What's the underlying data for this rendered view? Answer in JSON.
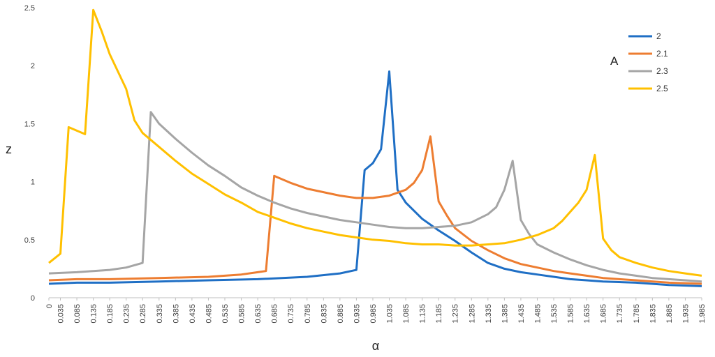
{
  "chart_data": {
    "type": "line",
    "xlabel": "α",
    "ylabel": "z",
    "ylim": [
      0,
      2.5
    ],
    "yticks": [
      "0",
      "0.5",
      "1",
      "1.5",
      "2",
      "2.5"
    ],
    "grid": false,
    "legend": {
      "title": "A",
      "position": "top-right"
    },
    "x": [
      0,
      0.035,
      0.085,
      0.135,
      0.185,
      0.235,
      0.285,
      0.335,
      0.385,
      0.435,
      0.485,
      0.535,
      0.585,
      0.635,
      0.685,
      0.735,
      0.785,
      0.835,
      0.885,
      0.935,
      0.985,
      1.035,
      1.085,
      1.135,
      1.185,
      1.235,
      1.285,
      1.335,
      1.385,
      1.435,
      1.485,
      1.535,
      1.585,
      1.635,
      1.685,
      1.735,
      1.785,
      1.835,
      1.885,
      1.935,
      1.985
    ],
    "x_tick_labels": [
      "0",
      "0.035",
      "0.085",
      "0.135",
      "0.185",
      "0.235",
      "0.285",
      "0.335",
      "0.385",
      "0.435",
      "0.485",
      "0.535",
      "0.585",
      "0.635",
      "0.685",
      "0.735",
      "0.785",
      "0.835",
      "0.885",
      "0.935",
      "0.985",
      "1.035",
      "1.085",
      "1.135",
      "1.185",
      "1.235",
      "1.285",
      "1.335",
      "1.385",
      "1.435",
      "1.485",
      "1.535",
      "1.585",
      "1.635",
      "1.685",
      "1.735",
      "1.785",
      "1.835",
      "1.885",
      "1.935",
      "1.985"
    ],
    "series": [
      {
        "name": "2",
        "color": "#1f6fc5",
        "points": [
          [
            0,
            0.12
          ],
          [
            0.085,
            0.13
          ],
          [
            0.185,
            0.13
          ],
          [
            0.335,
            0.14
          ],
          [
            0.485,
            0.15
          ],
          [
            0.635,
            0.16
          ],
          [
            0.785,
            0.18
          ],
          [
            0.885,
            0.21
          ],
          [
            0.935,
            0.24
          ],
          [
            0.96,
            1.1
          ],
          [
            0.985,
            1.16
          ],
          [
            1.01,
            1.28
          ],
          [
            1.035,
            1.95
          ],
          [
            1.06,
            0.93
          ],
          [
            1.085,
            0.82
          ],
          [
            1.135,
            0.68
          ],
          [
            1.185,
            0.58
          ],
          [
            1.235,
            0.49
          ],
          [
            1.285,
            0.39
          ],
          [
            1.335,
            0.3
          ],
          [
            1.385,
            0.25
          ],
          [
            1.435,
            0.22
          ],
          [
            1.485,
            0.2
          ],
          [
            1.535,
            0.18
          ],
          [
            1.585,
            0.16
          ],
          [
            1.635,
            0.15
          ],
          [
            1.685,
            0.14
          ],
          [
            1.785,
            0.13
          ],
          [
            1.885,
            0.11
          ],
          [
            1.985,
            0.1
          ]
        ]
      },
      {
        "name": "2.1",
        "color": "#ed7d31",
        "points": [
          [
            0,
            0.15
          ],
          [
            0.085,
            0.16
          ],
          [
            0.185,
            0.16
          ],
          [
            0.335,
            0.17
          ],
          [
            0.485,
            0.18
          ],
          [
            0.585,
            0.2
          ],
          [
            0.635,
            0.22
          ],
          [
            0.66,
            0.23
          ],
          [
            0.685,
            1.05
          ],
          [
            0.735,
            0.99
          ],
          [
            0.785,
            0.94
          ],
          [
            0.835,
            0.91
          ],
          [
            0.885,
            0.88
          ],
          [
            0.935,
            0.86
          ],
          [
            0.985,
            0.86
          ],
          [
            1.035,
            0.88
          ],
          [
            1.085,
            0.93
          ],
          [
            1.11,
            0.99
          ],
          [
            1.135,
            1.1
          ],
          [
            1.16,
            1.39
          ],
          [
            1.185,
            0.83
          ],
          [
            1.21,
            0.71
          ],
          [
            1.235,
            0.6
          ],
          [
            1.285,
            0.49
          ],
          [
            1.335,
            0.41
          ],
          [
            1.385,
            0.34
          ],
          [
            1.435,
            0.29
          ],
          [
            1.485,
            0.26
          ],
          [
            1.535,
            0.23
          ],
          [
            1.585,
            0.21
          ],
          [
            1.635,
            0.19
          ],
          [
            1.685,
            0.17
          ],
          [
            1.735,
            0.16
          ],
          [
            1.785,
            0.15
          ],
          [
            1.885,
            0.13
          ],
          [
            1.985,
            0.12
          ]
        ]
      },
      {
        "name": "2.3",
        "color": "#a5a5a5",
        "points": [
          [
            0,
            0.21
          ],
          [
            0.085,
            0.22
          ],
          [
            0.135,
            0.23
          ],
          [
            0.185,
            0.24
          ],
          [
            0.235,
            0.26
          ],
          [
            0.285,
            0.3
          ],
          [
            0.31,
            1.6
          ],
          [
            0.335,
            1.5
          ],
          [
            0.385,
            1.37
          ],
          [
            0.435,
            1.25
          ],
          [
            0.485,
            1.14
          ],
          [
            0.535,
            1.05
          ],
          [
            0.585,
            0.95
          ],
          [
            0.635,
            0.88
          ],
          [
            0.685,
            0.82
          ],
          [
            0.735,
            0.77
          ],
          [
            0.785,
            0.73
          ],
          [
            0.835,
            0.7
          ],
          [
            0.885,
            0.67
          ],
          [
            0.935,
            0.65
          ],
          [
            0.985,
            0.63
          ],
          [
            1.035,
            0.61
          ],
          [
            1.085,
            0.6
          ],
          [
            1.135,
            0.6
          ],
          [
            1.185,
            0.61
          ],
          [
            1.235,
            0.62
          ],
          [
            1.285,
            0.65
          ],
          [
            1.335,
            0.72
          ],
          [
            1.36,
            0.78
          ],
          [
            1.385,
            0.93
          ],
          [
            1.41,
            1.18
          ],
          [
            1.435,
            0.67
          ],
          [
            1.46,
            0.55
          ],
          [
            1.485,
            0.46
          ],
          [
            1.535,
            0.39
          ],
          [
            1.585,
            0.33
          ],
          [
            1.635,
            0.28
          ],
          [
            1.685,
            0.24
          ],
          [
            1.735,
            0.21
          ],
          [
            1.785,
            0.19
          ],
          [
            1.835,
            0.17
          ],
          [
            1.885,
            0.16
          ],
          [
            1.935,
            0.15
          ],
          [
            1.985,
            0.14
          ]
        ]
      },
      {
        "name": "2.5",
        "color": "#ffc000",
        "points": [
          [
            0,
            0.3
          ],
          [
            0.035,
            0.38
          ],
          [
            0.06,
            1.47
          ],
          [
            0.085,
            1.44
          ],
          [
            0.11,
            1.41
          ],
          [
            0.135,
            2.48
          ],
          [
            0.16,
            2.3
          ],
          [
            0.185,
            2.1
          ],
          [
            0.235,
            1.8
          ],
          [
            0.26,
            1.53
          ],
          [
            0.285,
            1.42
          ],
          [
            0.335,
            1.3
          ],
          [
            0.385,
            1.18
          ],
          [
            0.435,
            1.07
          ],
          [
            0.485,
            0.98
          ],
          [
            0.535,
            0.89
          ],
          [
            0.585,
            0.82
          ],
          [
            0.635,
            0.74
          ],
          [
            0.685,
            0.69
          ],
          [
            0.735,
            0.64
          ],
          [
            0.785,
            0.6
          ],
          [
            0.835,
            0.57
          ],
          [
            0.885,
            0.54
          ],
          [
            0.935,
            0.52
          ],
          [
            0.985,
            0.5
          ],
          [
            1.035,
            0.49
          ],
          [
            1.085,
            0.47
          ],
          [
            1.135,
            0.46
          ],
          [
            1.185,
            0.46
          ],
          [
            1.235,
            0.45
          ],
          [
            1.285,
            0.45
          ],
          [
            1.335,
            0.46
          ],
          [
            1.385,
            0.47
          ],
          [
            1.435,
            0.5
          ],
          [
            1.485,
            0.54
          ],
          [
            1.535,
            0.6
          ],
          [
            1.56,
            0.66
          ],
          [
            1.585,
            0.74
          ],
          [
            1.61,
            0.82
          ],
          [
            1.635,
            0.93
          ],
          [
            1.66,
            1.23
          ],
          [
            1.685,
            0.51
          ],
          [
            1.71,
            0.41
          ],
          [
            1.735,
            0.35
          ],
          [
            1.785,
            0.3
          ],
          [
            1.835,
            0.26
          ],
          [
            1.885,
            0.23
          ],
          [
            1.935,
            0.21
          ],
          [
            1.985,
            0.19
          ]
        ]
      }
    ]
  }
}
